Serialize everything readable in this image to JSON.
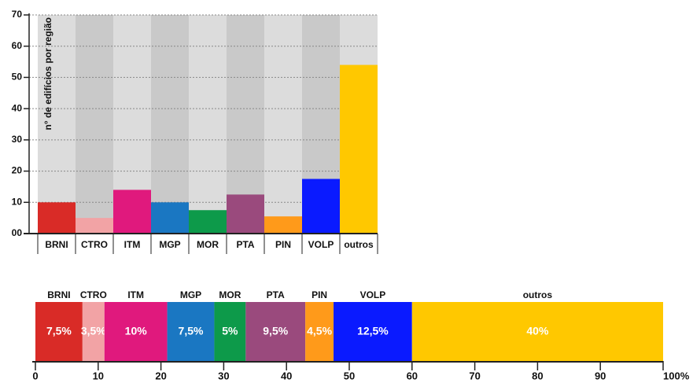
{
  "chart_data": [
    {
      "type": "bar",
      "ylabel": "n° de edifícios  por região",
      "categories": [
        "BRNI",
        "CTRO",
        "ITM",
        "MGP",
        "MOR",
        "PTA",
        "PIN",
        "VOLP",
        "outros"
      ],
      "values": [
        10,
        5,
        14,
        10,
        7.5,
        12.5,
        5.5,
        17.5,
        54
      ],
      "colors": [
        "#d92b27",
        "#f2a3a5",
        "#e0197d",
        "#1a77c2",
        "#0d9a4a",
        "#9a4a7d",
        "#ff9a1a",
        "#0a1aff",
        "#ffc800"
      ],
      "ylim": [
        0,
        70
      ],
      "yticks": [
        {
          "value": 0,
          "label": "00"
        },
        10,
        20,
        30,
        40,
        50,
        60,
        70
      ],
      "grid": true
    },
    {
      "type": "stackedbar",
      "categories": [
        "BRNI",
        "CTRO",
        "ITM",
        "MGP",
        "MOR",
        "PTA",
        "PIN",
        "VOLP",
        "outros"
      ],
      "values": [
        7.5,
        3.5,
        10,
        7.5,
        5,
        9.5,
        4.5,
        12.5,
        40
      ],
      "value_labels": [
        "7,5%",
        "3,5%",
        "10%",
        "7,5%",
        "5%",
        "9,5%",
        "4,5%",
        "12,5%",
        "40%"
      ],
      "colors": [
        "#d92b27",
        "#f2a3a5",
        "#e0197d",
        "#1a77c2",
        "#0d9a4a",
        "#9a4a7d",
        "#ff9a1a",
        "#0a1aff",
        "#ffc800"
      ],
      "xlim": [
        0,
        100
      ],
      "xticks": [
        0,
        10,
        20,
        30,
        40,
        50,
        60,
        70,
        80,
        90,
        {
          "value": 100,
          "label": "100%"
        }
      ]
    }
  ]
}
